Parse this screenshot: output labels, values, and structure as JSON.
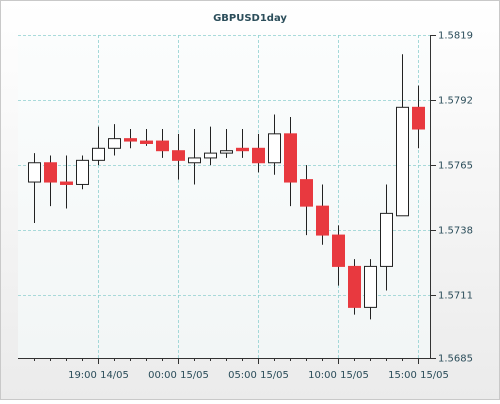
{
  "chart_data": {
    "type": "candlestick",
    "title": "GBPUSD1day",
    "categories": [
      null,
      null,
      null,
      null,
      "19:00 14/05",
      null,
      null,
      null,
      null,
      "00:00 15/05",
      null,
      null,
      null,
      null,
      "05:00 15/05",
      null,
      null,
      null,
      null,
      "10:00 15/05",
      null,
      null,
      null,
      null,
      "15:00 15/05"
    ],
    "open": [
      1.5758,
      1.5766,
      1.5758,
      1.5757,
      1.5767,
      1.5772,
      1.5776,
      1.5775,
      1.5775,
      1.5771,
      1.5766,
      1.5768,
      1.577,
      1.5772,
      1.5772,
      1.5766,
      1.5778,
      1.5759,
      1.5748,
      1.5736,
      1.5723,
      1.5706,
      1.5723,
      1.5744,
      1.5789
    ],
    "high": [
      1.577,
      1.5769,
      1.5769,
      1.5769,
      1.5781,
      1.5782,
      1.578,
      1.578,
      1.578,
      1.5778,
      1.578,
      1.5781,
      1.578,
      1.578,
      1.5778,
      1.5786,
      1.5785,
      1.5765,
      1.5757,
      1.574,
      1.5726,
      1.5726,
      1.5757,
      1.5811,
      1.5798
    ],
    "low": [
      1.5741,
      1.5748,
      1.5747,
      1.5755,
      1.5765,
      1.5769,
      1.5772,
      1.5773,
      1.5768,
      1.5759,
      1.5757,
      1.5765,
      1.5768,
      1.5768,
      1.5762,
      1.5761,
      1.5748,
      1.5736,
      1.5732,
      1.5715,
      1.5703,
      1.5701,
      1.5713,
      1.5744,
      1.5772
    ],
    "close": [
      1.5766,
      1.5758,
      1.5757,
      1.5767,
      1.5772,
      1.5776,
      1.5775,
      1.5774,
      1.5771,
      1.5767,
      1.5768,
      1.577,
      1.5771,
      1.5771,
      1.5766,
      1.5778,
      1.5758,
      1.5748,
      1.5736,
      1.5723,
      1.5706,
      1.5723,
      1.5745,
      1.5789,
      1.578
    ],
    "up_color": "#ffffff",
    "down_color": "#e8393f",
    "ylim": [
      1.5685,
      1.5819
    ],
    "yticks": [
      1.5685,
      1.5711,
      1.5738,
      1.5765,
      1.5792,
      1.5819
    ],
    "grid": true
  }
}
